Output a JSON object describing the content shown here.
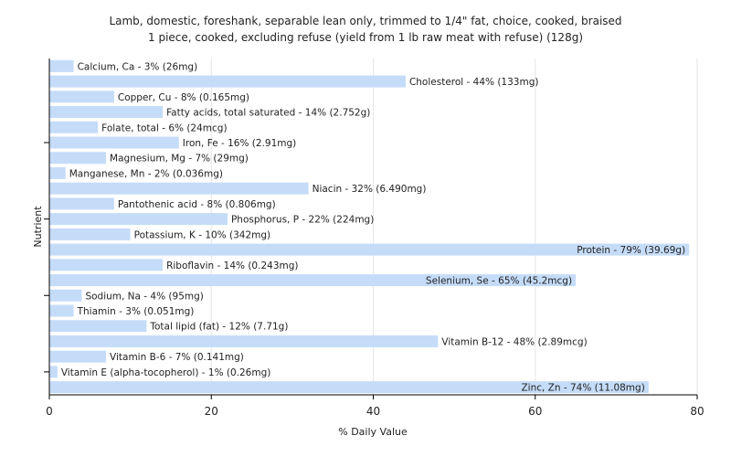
{
  "chart_data": {
    "type": "bar",
    "orientation": "horizontal",
    "title_lines": [
      "Lamb, domestic, foreshank, separable lean only, trimmed to 1/4\" fat, choice, cooked, braised",
      "1 piece, cooked, excluding refuse (yield from 1 lb raw meat with refuse) (128g)"
    ],
    "xlabel": "% Daily Value",
    "ylabel": "Nutrient",
    "xlim": [
      0,
      80
    ],
    "xticks": [
      0,
      20,
      40,
      60,
      80
    ],
    "grid": true,
    "bar_color": "#c5dcf8",
    "categories": [
      "Calcium, Ca - 3% (26mg)",
      "Cholesterol - 44% (133mg)",
      "Copper, Cu - 8% (0.165mg)",
      "Fatty acids, total saturated - 14% (2.752g)",
      "Folate, total - 6% (24mcg)",
      "Iron, Fe - 16% (2.91mg)",
      "Magnesium, Mg - 7% (29mg)",
      "Manganese, Mn - 2% (0.036mg)",
      "Niacin - 32% (6.490mg)",
      "Pantothenic acid - 8% (0.806mg)",
      "Phosphorus, P - 22% (224mg)",
      "Potassium, K - 10% (342mg)",
      "Protein - 79% (39.69g)",
      "Riboflavin - 14% (0.243mg)",
      "Selenium, Se - 65% (45.2mcg)",
      "Sodium, Na - 4% (95mg)",
      "Thiamin - 3% (0.051mg)",
      "Total lipid (fat) - 12% (7.71g)",
      "Vitamin B-12 - 48% (2.89mcg)",
      "Vitamin B-6 - 7% (0.141mg)",
      "Vitamin E (alpha-tocopherol) - 1% (0.26mg)",
      "Zinc, Zn - 74% (11.08mg)"
    ],
    "values": [
      3,
      44,
      8,
      14,
      6,
      16,
      7,
      2,
      32,
      8,
      22,
      10,
      79,
      14,
      65,
      4,
      3,
      12,
      48,
      7,
      1,
      74
    ]
  }
}
